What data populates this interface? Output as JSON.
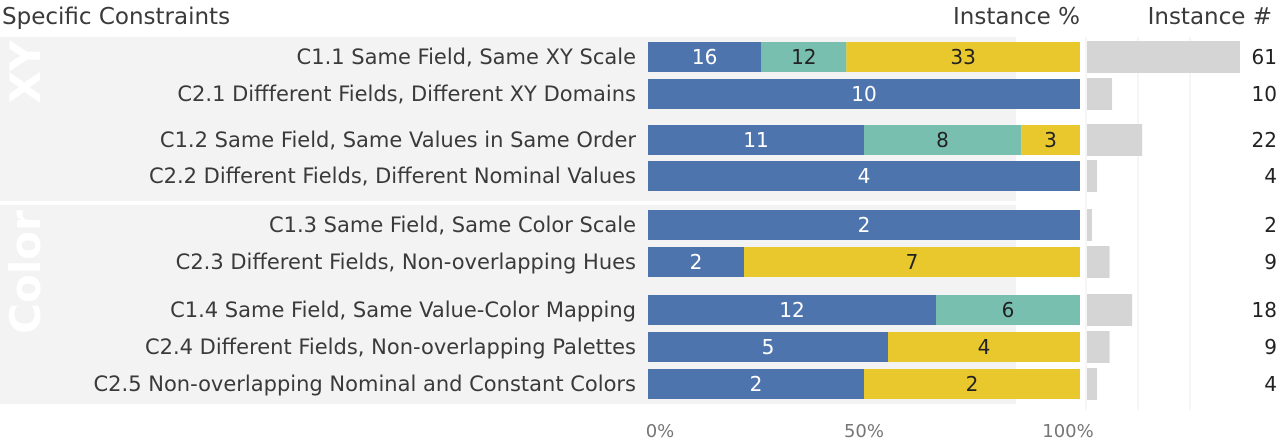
{
  "chart_data": {
    "type": "bar",
    "column_headers": {
      "constraints": "Specific Constraints",
      "percent": "Instance %",
      "count": "Instance #"
    },
    "groups": [
      {
        "name": "XY",
        "rows": [
          0,
          1,
          2,
          3
        ]
      },
      {
        "name": "Color",
        "rows": [
          4,
          5,
          6,
          7,
          8
        ]
      }
    ],
    "series_colors": [
      "#4e74ae",
      "#79bfb0",
      "#e9c82e"
    ],
    "count_bar_color": "#d5d5d5",
    "rows": [
      {
        "label": "C1.1 Same Field, Same XY Scale",
        "segments": [
          16,
          12,
          33
        ],
        "total": 61
      },
      {
        "label": "C2.1 Diffferent Fields, Different XY Domains",
        "segments": [
          10,
          0,
          0
        ],
        "total": 10
      },
      {
        "label": "C1.2 Same Field, Same Values in Same Order",
        "segments": [
          11,
          8,
          3
        ],
        "total": 22
      },
      {
        "label": "C2.2 Different Fields, Different Nominal Values",
        "segments": [
          4,
          0,
          0
        ],
        "total": 4
      },
      {
        "label": "C1.3 Same Field, Same Color Scale",
        "segments": [
          2,
          0,
          0
        ],
        "total": 2
      },
      {
        "label": "C2.3 Different Fields, Non-overlapping Hues",
        "segments": [
          2,
          0,
          7
        ],
        "total": 9
      },
      {
        "label": "C1.4 Same Field, Same Value-Color Mapping",
        "segments": [
          12,
          6,
          0
        ],
        "total": 18
      },
      {
        "label": "C2.4 Different Fields, Non-overlapping Palettes",
        "segments": [
          5,
          0,
          4
        ],
        "total": 9
      },
      {
        "label": "C2.5 Non-overlapping Nominal and Constant Colors",
        "segments": [
          2,
          0,
          2
        ],
        "total": 4
      }
    ],
    "x_ticks": [
      "0%",
      "50%",
      "100%"
    ],
    "xlim_percent": [
      0,
      100
    ],
    "count_xlim": [
      0,
      61
    ]
  }
}
